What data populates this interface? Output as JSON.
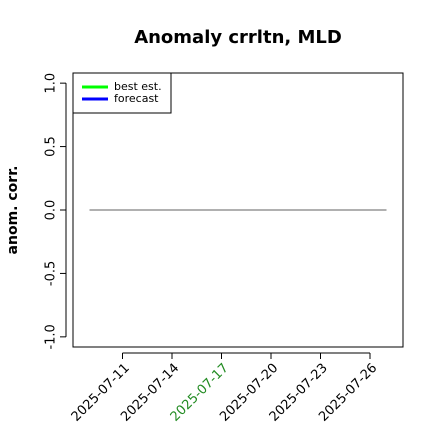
{
  "chart_data": {
    "type": "line",
    "title": "Anomaly crrltn, MLD",
    "ylabel": "anom. corr.",
    "series": [
      {
        "name": "best est.",
        "color": "#00ff00",
        "values": []
      },
      {
        "name": "forecast",
        "color": "#0000ff",
        "values": []
      }
    ],
    "reference_line": {
      "y": 0,
      "x": [
        "2025-07-09",
        "2025-07-27"
      ],
      "color": "#808080"
    },
    "xlim": [
      "2025-07-08",
      "2025-07-28"
    ],
    "xticks": [
      "2025-07-11",
      "2025-07-14",
      "2025-07-17",
      "2025-07-20",
      "2025-07-23",
      "2025-07-26"
    ],
    "highlight_tick": "2025-07-17",
    "highlight_color": "#228b22",
    "ylim": [
      -1.08,
      1.08
    ],
    "yticks": [
      {
        "value": -1,
        "label": "-1.0"
      },
      {
        "value": -0.5,
        "label": "-0.5"
      },
      {
        "value": 0,
        "label": "0.0"
      },
      {
        "value": 0.5,
        "label": "0.5"
      },
      {
        "value": 1,
        "label": "1.0"
      }
    ],
    "legend": "top-left"
  }
}
